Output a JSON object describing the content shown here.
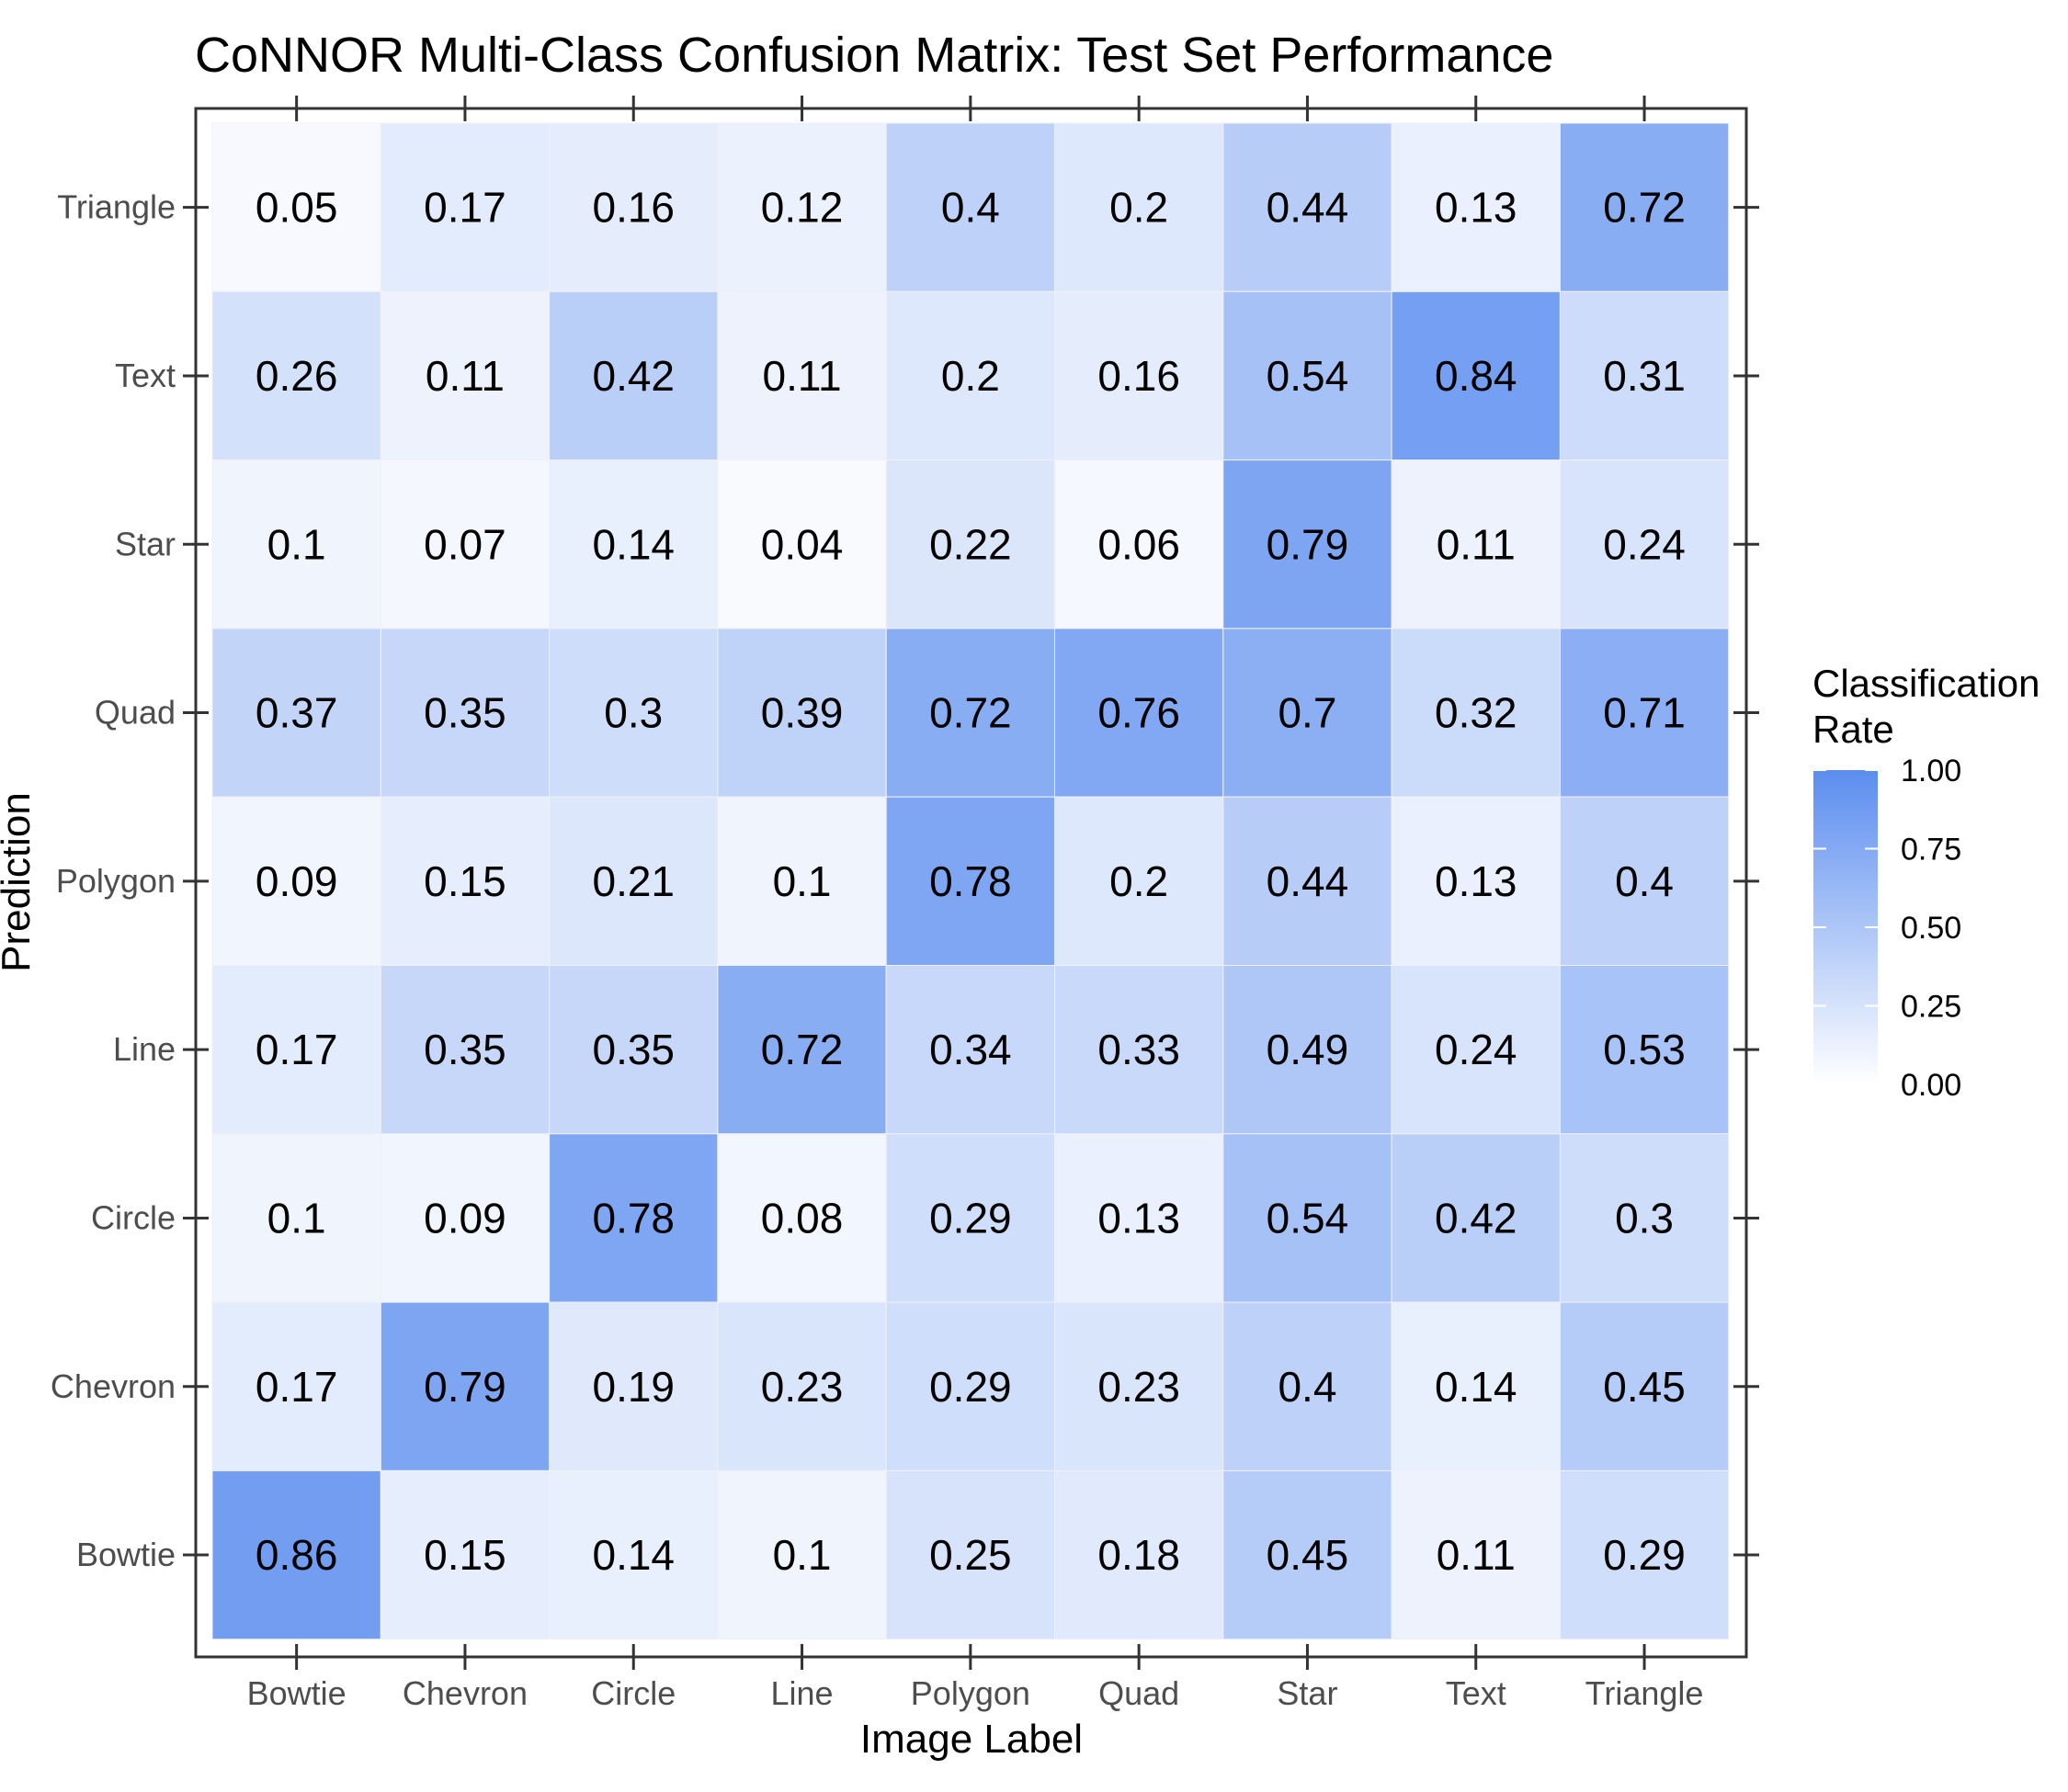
{
  "chart_data": {
    "type": "heatmap",
    "title": "CoNNOR Multi-Class Confusion Matrix: Test Set Performance",
    "xlabel": "Image Label",
    "ylabel": "Prediction",
    "x_categories": [
      "Bowtie",
      "Chevron",
      "Circle",
      "Line",
      "Polygon",
      "Quad",
      "Star",
      "Text",
      "Triangle"
    ],
    "y_categories": [
      "Bowtie",
      "Chevron",
      "Circle",
      "Line",
      "Polygon",
      "Quad",
      "Star",
      "Text",
      "Triangle"
    ],
    "rows": [
      {
        "prediction": "Triangle",
        "values": [
          0.05,
          0.17,
          0.16,
          0.12,
          0.4,
          0.2,
          0.44,
          0.13,
          0.72
        ]
      },
      {
        "prediction": "Text",
        "values": [
          0.26,
          0.11,
          0.42,
          0.11,
          0.2,
          0.16,
          0.54,
          0.84,
          0.31
        ]
      },
      {
        "prediction": "Star",
        "values": [
          0.1,
          0.07,
          0.14,
          0.04,
          0.22,
          0.06,
          0.79,
          0.11,
          0.24
        ]
      },
      {
        "prediction": "Quad",
        "values": [
          0.37,
          0.35,
          0.3,
          0.39,
          0.72,
          0.76,
          0.7,
          0.32,
          0.71
        ]
      },
      {
        "prediction": "Polygon",
        "values": [
          0.09,
          0.15,
          0.21,
          0.1,
          0.78,
          0.2,
          0.44,
          0.13,
          0.4
        ]
      },
      {
        "prediction": "Line",
        "values": [
          0.17,
          0.35,
          0.35,
          0.72,
          0.34,
          0.33,
          0.49,
          0.24,
          0.53
        ]
      },
      {
        "prediction": "Circle",
        "values": [
          0.1,
          0.09,
          0.78,
          0.08,
          0.29,
          0.13,
          0.54,
          0.42,
          0.3
        ]
      },
      {
        "prediction": "Chevron",
        "values": [
          0.17,
          0.79,
          0.19,
          0.23,
          0.29,
          0.23,
          0.4,
          0.14,
          0.45
        ]
      },
      {
        "prediction": "Bowtie",
        "values": [
          0.86,
          0.15,
          0.14,
          0.1,
          0.25,
          0.18,
          0.45,
          0.11,
          0.29
        ]
      }
    ],
    "color_scale": {
      "low_color": "#ffffff",
      "high_color": "#5b8def",
      "range": [
        0,
        1
      ]
    },
    "legend": {
      "title_lines": [
        "Classification",
        "Rate"
      ],
      "breaks": [
        "1.00",
        "0.75",
        "0.50",
        "0.25",
        "0.00"
      ],
      "break_values": [
        1.0,
        0.75,
        0.5,
        0.25,
        0.0
      ],
      "placement": "right"
    },
    "grid": false,
    "panel_border_color": "#333333",
    "tick_color": "#333333"
  }
}
